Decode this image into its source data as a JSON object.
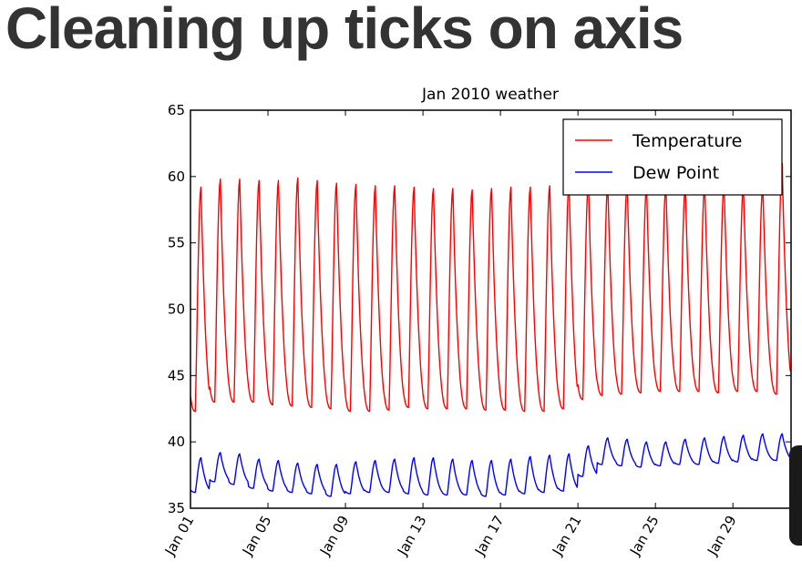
{
  "slide": {
    "title": "Cleaning up ticks on axis"
  },
  "chart_data": {
    "type": "line",
    "title": "Jan 2010 weather",
    "xlabel": "",
    "ylabel": "",
    "ylim": [
      35,
      65
    ],
    "yticks": [
      35,
      40,
      45,
      50,
      55,
      60,
      65
    ],
    "xlim_days": [
      0,
      31
    ],
    "xtick_labels": [
      "Jan 01",
      "Jan 05",
      "Jan 09",
      "Jan 13",
      "Jan 17",
      "Jan 21",
      "Jan 25",
      "Jan 29"
    ],
    "legend": {
      "placement": "top-right",
      "entries": [
        "Temperature",
        "Dew Point"
      ]
    },
    "grid": false,
    "series": [
      {
        "name": "Temperature",
        "color": "#ff0000",
        "daily_high": [
          59.2,
          59.8,
          59.8,
          59.7,
          59.7,
          59.9,
          59.7,
          59.5,
          59.4,
          59.3,
          59.3,
          59.2,
          59.1,
          59.1,
          59.0,
          59.1,
          59.2,
          59.2,
          59.3,
          59.5,
          59.6,
          59.4,
          59.5,
          59.3,
          59.3,
          59.3,
          59.4,
          59.4,
          59.4,
          59.3,
          61.0
        ],
        "daily_low": [
          42.3,
          43.0,
          43.0,
          43.0,
          42.8,
          42.7,
          42.6,
          42.5,
          42.3,
          42.3,
          42.4,
          42.6,
          42.5,
          42.5,
          42.5,
          42.4,
          42.4,
          42.3,
          42.3,
          42.5,
          43.2,
          43.5,
          43.6,
          43.7,
          43.8,
          43.8,
          43.8,
          43.7,
          43.8,
          43.8,
          43.6
        ]
      },
      {
        "name": "Dew Point",
        "color": "#0000ff",
        "daily_high": [
          38.8,
          39.2,
          39.1,
          38.7,
          38.6,
          38.4,
          38.3,
          38.3,
          38.5,
          38.6,
          38.7,
          38.8,
          38.8,
          38.7,
          38.6,
          38.6,
          38.7,
          38.9,
          39.0,
          39.1,
          39.7,
          40.3,
          40.2,
          40.0,
          40.0,
          40.2,
          40.3,
          40.4,
          40.5,
          40.6,
          40.6
        ],
        "daily_low": [
          36.2,
          37.0,
          36.8,
          36.5,
          36.3,
          36.2,
          36.1,
          35.9,
          36.1,
          36.2,
          36.2,
          36.1,
          36.0,
          36.0,
          36.0,
          35.9,
          36.0,
          36.1,
          36.2,
          36.3,
          37.4,
          38.3,
          38.2,
          38.1,
          38.2,
          38.3,
          38.3,
          38.4,
          38.5,
          38.6,
          38.6
        ]
      }
    ]
  }
}
